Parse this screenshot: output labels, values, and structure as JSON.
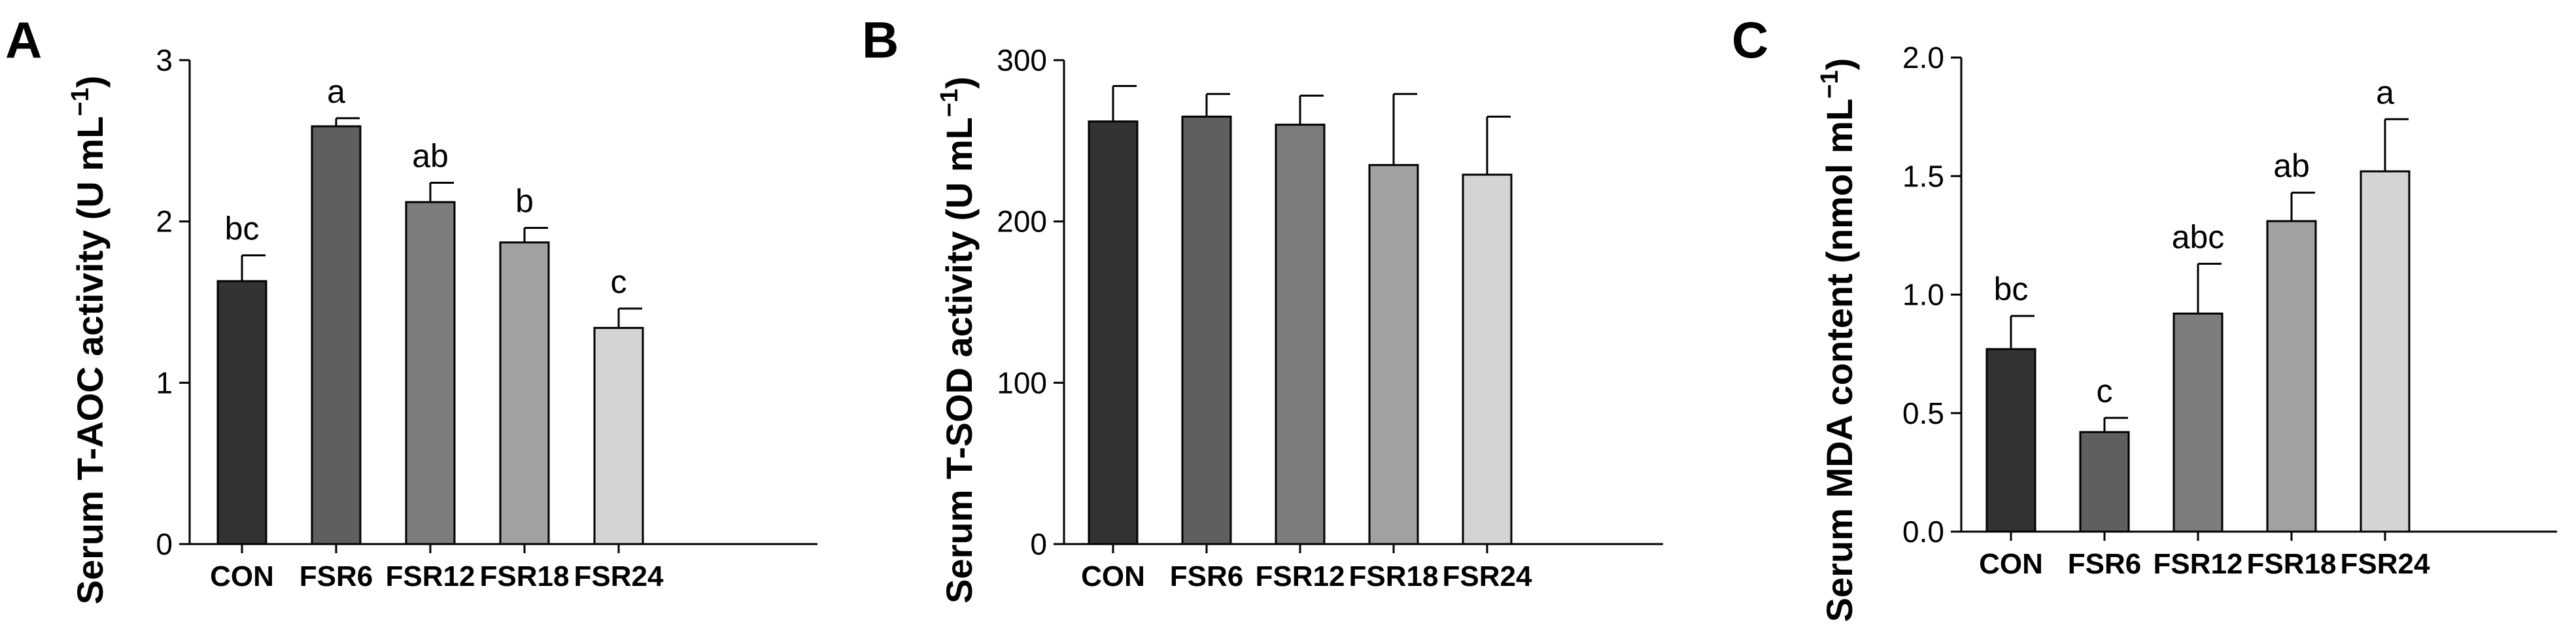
{
  "chart_data": [
    {
      "type": "bar",
      "panel": "A",
      "ylabel": "Serum T-AOC activity (U mL",
      "ylabel_sup": "−1",
      "ylabel_suffix": ")",
      "categories": [
        "CON",
        "FSR6",
        "FSR12",
        "FSR18",
        "FSR24"
      ],
      "values": [
        1.63,
        2.59,
        2.12,
        1.87,
        1.34
      ],
      "errors": [
        0.16,
        0.05,
        0.12,
        0.09,
        0.12
      ],
      "sig_letters": [
        "bc",
        "a",
        "ab",
        "b",
        "c"
      ],
      "ylim": [
        0,
        3
      ],
      "yticks": [
        0,
        1,
        2,
        3
      ],
      "ytick_labels": [
        "0",
        "1",
        "2",
        "3"
      ],
      "colors": [
        "#333333",
        "#5f5f5f",
        "#7d7d7d",
        "#a1a1a4",
        "#d4d4d4"
      ]
    },
    {
      "type": "bar",
      "panel": "B",
      "ylabel": "Serum T-SOD activity (U mL",
      "ylabel_sup": "−1",
      "ylabel_suffix": ")",
      "categories": [
        "CON",
        "FSR6",
        "FSR12",
        "FSR18",
        "FSR24"
      ],
      "values": [
        262,
        265,
        260,
        235,
        229
      ],
      "errors": [
        22,
        14,
        18,
        44,
        36
      ],
      "sig_letters": [
        "",
        "",
        "",
        "",
        ""
      ],
      "ylim": [
        0,
        300
      ],
      "yticks": [
        0,
        100,
        200,
        300
      ],
      "ytick_labels": [
        "0",
        "100",
        "200",
        "300"
      ],
      "colors": [
        "#333333",
        "#5f5f5f",
        "#7d7d7d",
        "#a1a1a4",
        "#d4d4d4"
      ]
    },
    {
      "type": "bar",
      "panel": "C",
      "ylabel": "Serum MDA content (nmol mL",
      "ylabel_sup": "−1",
      "ylabel_suffix": ")",
      "categories": [
        "CON",
        "FSR6",
        "FSR12",
        "FSR18",
        "FSR24"
      ],
      "values": [
        0.77,
        0.42,
        0.92,
        1.31,
        1.52
      ],
      "errors": [
        0.14,
        0.06,
        0.21,
        0.12,
        0.22
      ],
      "sig_letters": [
        "bc",
        "c",
        "abc",
        "ab",
        "a"
      ],
      "ylim": [
        0,
        2.0
      ],
      "yticks": [
        0,
        0.5,
        1.0,
        1.5,
        2.0
      ],
      "ytick_labels": [
        "0.0",
        "0.5",
        "1.0",
        "1.5",
        "2.0"
      ],
      "colors": [
        "#333333",
        "#5f5f5f",
        "#7d7d7d",
        "#a1a1a4",
        "#d4d4d4"
      ]
    }
  ]
}
